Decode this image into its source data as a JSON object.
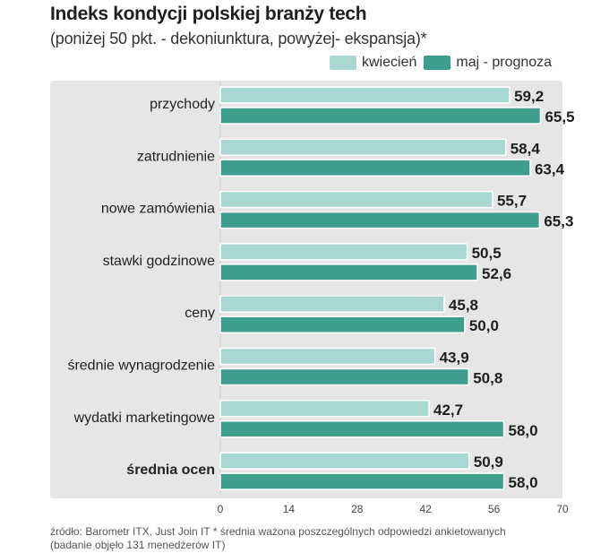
{
  "chart_data": {
    "type": "bar",
    "orientation": "horizontal",
    "title": "Indeks kondycji polskiej branży tech",
    "subtitle": "(poniżej 50 pkt. - dekoniunktura, powyżej- ekspansja)*",
    "categories": [
      "przychody",
      "zatrudnienie",
      "nowe zamówienia",
      "stawki godzinowe",
      "ceny",
      "średnie wynagrodzenie",
      "wydatki marketingowe",
      "średnia ocen"
    ],
    "bold_categories": [
      "średnia ocen"
    ],
    "series": [
      {
        "name": "kwiecień",
        "color": "#a9d7d2",
        "values": [
          59.2,
          58.4,
          55.7,
          50.5,
          45.8,
          43.9,
          42.7,
          50.9
        ],
        "labels": [
          "59,2",
          "58,4",
          "55,7",
          "50,5",
          "45,8",
          "43,9",
          "42,7",
          "50,9"
        ]
      },
      {
        "name": "maj - prognoza",
        "color": "#3d9e8e",
        "values": [
          65.5,
          63.4,
          65.3,
          52.6,
          50.0,
          50.8,
          58.0,
          58.0
        ],
        "labels": [
          "65,5",
          "63,4",
          "65,3",
          "52,6",
          "50,0",
          "50,8",
          "58,0",
          "58,0"
        ]
      }
    ],
    "xlim": [
      0,
      70
    ],
    "xticks": [
      0,
      14,
      28,
      42,
      56,
      70
    ],
    "xtick_labels": [
      "0",
      "14",
      "28",
      "42",
      "56",
      "70"
    ],
    "grid": false,
    "legend": "top-right"
  },
  "footnote": {
    "line1": "źródło: Barometr ITX, Just Join IT * średnia ważona poszczególnych odpowiedzi ankietowanych",
    "line2": "(badanie objęło 131 menedżerów IT)"
  }
}
